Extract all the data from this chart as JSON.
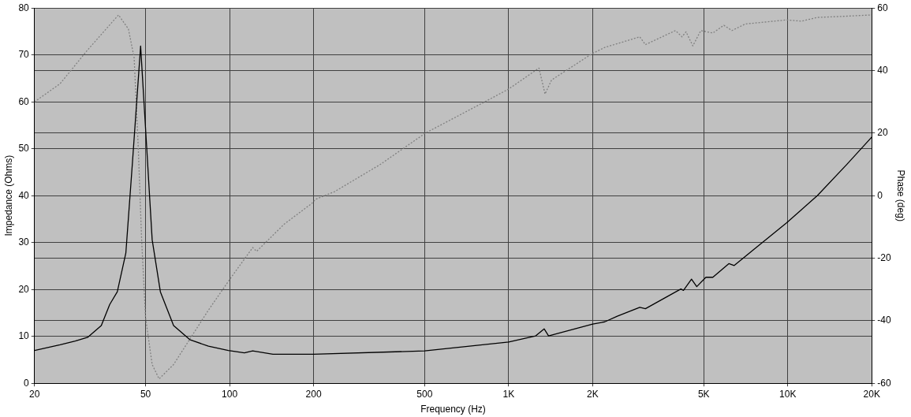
{
  "chart_data": {
    "type": "line",
    "xlabel": "Frequency (Hz)",
    "ylabel": "Impedance (Ohms)",
    "y2label": "Phase (deg)",
    "log": "x",
    "grid": true,
    "legend": false,
    "marker": "none",
    "xlim": [
      20,
      20000
    ],
    "xticks": [
      20,
      50,
      100,
      200,
      500,
      {
        "value": 1000,
        "label": "1K"
      },
      {
        "value": 2000,
        "label": "2K"
      },
      {
        "value": 5000,
        "label": "5K"
      },
      {
        "value": 10000,
        "label": "10K"
      },
      {
        "value": 20000,
        "label": "20K"
      }
    ],
    "ylim": [
      0,
      80
    ],
    "yticks": [
      0,
      10,
      20,
      30,
      40,
      50,
      60,
      70,
      80
    ],
    "y2lim": [
      -60,
      60
    ],
    "y2ticks": [
      -60,
      -40,
      -20,
      0,
      20,
      40,
      60
    ],
    "series": [
      {
        "color": "#000000",
        "line_style": "solid",
        "x": [
          20,
          24.7,
          28,
          31,
          34.7,
          37.2,
          39.6,
          42.5,
          44.9,
          48,
          50.5,
          52.8,
          56.5,
          63,
          72,
          84,
          99,
          113,
          121,
          143,
          200,
          500,
          1000,
          1250,
          1340,
          1390,
          2000,
          2210,
          2450,
          2950,
          3090,
          4140,
          4230,
          4520,
          4720,
          5090,
          5390,
          6150,
          6430,
          7510,
          9900,
          12760,
          16300,
          20000
        ],
        "values": [
          7.0,
          8.2,
          9.0,
          9.8,
          12.3,
          16.8,
          19.5,
          27.8,
          47.3,
          71.9,
          50.0,
          30.6,
          19.5,
          12.3,
          9.3,
          7.9,
          7.0,
          6.5,
          6.9,
          6.2,
          6.2,
          6.9,
          8.8,
          10.1,
          11.6,
          10.1,
          12.6,
          13.1,
          14.3,
          16.2,
          15.9,
          20.1,
          19.8,
          22.2,
          20.6,
          22.6,
          22.6,
          25.5,
          25.1,
          28.4,
          34.2,
          40.0,
          46.7,
          52.5
        ]
      },
      {
        "color": "#808080",
        "line_style": "dotted",
        "axis": "y2",
        "x": [
          20,
          24.7,
          31,
          40,
          43.4,
          45.5,
          47.1,
          48.4,
          50,
          52.8,
          55.9,
          63,
          84,
          99,
          121,
          125,
          157,
          197,
          203,
          238,
          347,
          503,
          837,
          1000,
          1284,
          1350,
          1425,
          1990,
          2210,
          2950,
          3090,
          3960,
          4180,
          4320,
          4570,
          4880,
          5390,
          5900,
          6310,
          7040,
          9900,
          11200,
          12760,
          16300,
          20000
        ],
        "values": [
          30.0,
          35.8,
          46.6,
          57.8,
          53.3,
          44.1,
          15.0,
          -14.1,
          -39.0,
          -54.0,
          -58.6,
          -54.0,
          -36.6,
          -27.4,
          -16.6,
          -17.8,
          -9.1,
          -2.5,
          -1.2,
          1.3,
          10.0,
          20.0,
          30.4,
          34.1,
          40.8,
          32.5,
          37.0,
          45.4,
          47.4,
          50.8,
          48.3,
          52.8,
          50.8,
          52.4,
          47.9,
          52.8,
          52.0,
          54.5,
          52.8,
          54.9,
          56.2,
          55.8,
          57.0,
          57.4,
          57.8
        ]
      }
    ]
  }
}
